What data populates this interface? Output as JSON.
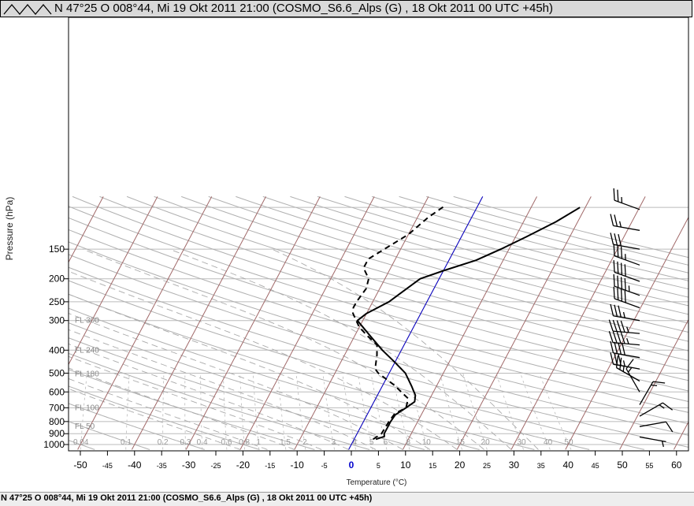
{
  "header": {
    "title": "N 47°25 O 008°44, Mi 19 Okt 2011 21:00 (COSMO_S6.6_Alps (G) , 18 Okt 2011 00 UTC +45h)",
    "logo_icon": "zigzag-logo-icon"
  },
  "status_bar": {
    "text": "N 47°25 O 008°44, Mi 19 Okt 2011 21:00 (COSMO_S6.6_Alps (G) , 18 Okt 2011 00 UTC +45h)"
  },
  "chart_data": {
    "type": "line",
    "xlabel": "Temperature (°C)",
    "ylabel": "Pressure (hPa)",
    "xlim": [
      -50,
      60
    ],
    "ylim": [
      1000,
      100
    ],
    "x_ticks": [
      -50,
      -45,
      -40,
      -35,
      -30,
      -25,
      -20,
      -15,
      -10,
      -5,
      0,
      5,
      10,
      15,
      20,
      25,
      30,
      35,
      40,
      45,
      50,
      55,
      60
    ],
    "y_ticks": [
      150,
      200,
      250,
      300,
      400,
      500,
      600,
      700,
      800,
      900,
      1000
    ],
    "flight_levels": [
      {
        "label": "FL 300",
        "p": 300
      },
      {
        "label": "FL 240",
        "p": 400
      },
      {
        "label": "FL 180",
        "p": 505
      },
      {
        "label": "FL 100",
        "p": 700
      },
      {
        "label": "FL 50",
        "p": 840
      }
    ],
    "mixing_ratio_labels": [
      "0.04",
      "0.1",
      "0.2",
      "0.3",
      "0.4",
      "0.6",
      "0.8",
      "1",
      "1.5",
      "2",
      "3",
      "4",
      "5",
      "6",
      "8",
      "10",
      "15",
      "20",
      "30",
      "40",
      "50"
    ],
    "series": [
      {
        "name": "",
        "style": "solid",
        "points": [
          [
            4,
            950
          ],
          [
            5.3,
            925
          ],
          [
            5,
            900
          ],
          [
            5,
            850
          ],
          [
            5,
            800
          ],
          [
            5.2,
            750
          ],
          [
            6.5,
            700
          ],
          [
            7.5,
            660
          ],
          [
            7,
            620
          ],
          [
            5.5,
            570
          ],
          [
            3,
            500
          ],
          [
            0,
            450
          ],
          [
            -3.5,
            400
          ],
          [
            -7,
            350
          ],
          [
            -11,
            300
          ],
          [
            -10,
            280
          ],
          [
            -7,
            250
          ],
          [
            -5,
            220
          ],
          [
            -3.5,
            200
          ],
          [
            0,
            185
          ],
          [
            5,
            167
          ],
          [
            8.5,
            150
          ],
          [
            12,
            133
          ],
          [
            16,
            115
          ],
          [
            19,
            100
          ]
        ]
      },
      {
        "name": "",
        "style": "dashed",
        "points": [
          [
            3.5,
            950
          ],
          [
            4.5,
            900
          ],
          [
            4.7,
            800
          ],
          [
            5,
            740
          ],
          [
            6.5,
            700
          ],
          [
            6,
            640
          ],
          [
            2,
            560
          ],
          [
            -2,
            500
          ],
          [
            -3,
            480
          ],
          [
            -4,
            420
          ],
          [
            -5,
            380
          ],
          [
            -7.5,
            350
          ],
          [
            -10,
            320
          ],
          [
            -12.5,
            280
          ],
          [
            -13,
            265
          ],
          [
            -13,
            250
          ],
          [
            -12.5,
            220
          ],
          [
            -13,
            200
          ],
          [
            -15,
            180
          ],
          [
            -15,
            165
          ],
          [
            -13,
            150
          ],
          [
            -10,
            130
          ],
          [
            -8,
            110
          ],
          [
            -6,
            98
          ]
        ]
      }
    ],
    "wind_barbs": [
      {
        "p": 102,
        "speed_kt": 25,
        "dir_deg": 290
      },
      {
        "p": 125,
        "speed_kt": 25,
        "dir_deg": 280
      },
      {
        "p": 150,
        "speed_kt": 30,
        "dir_deg": 280
      },
      {
        "p": 175,
        "speed_kt": 35,
        "dir_deg": 290
      },
      {
        "p": 205,
        "speed_kt": 40,
        "dir_deg": 290
      },
      {
        "p": 235,
        "speed_kt": 45,
        "dir_deg": 290
      },
      {
        "p": 265,
        "speed_kt": 40,
        "dir_deg": 290
      },
      {
        "p": 300,
        "speed_kt": 35,
        "dir_deg": 280
      },
      {
        "p": 340,
        "speed_kt": 45,
        "dir_deg": 275
      },
      {
        "p": 380,
        "speed_kt": 45,
        "dir_deg": 275
      },
      {
        "p": 430,
        "speed_kt": 40,
        "dir_deg": 280
      },
      {
        "p": 480,
        "speed_kt": 35,
        "dir_deg": 280
      },
      {
        "p": 540,
        "speed_kt": 25,
        "dir_deg": 300
      },
      {
        "p": 600,
        "speed_kt": 15,
        "dir_deg": 330
      },
      {
        "p": 680,
        "speed_kt": 15,
        "dir_deg": 30
      },
      {
        "p": 760,
        "speed_kt": 15,
        "dir_deg": 60
      },
      {
        "p": 840,
        "speed_kt": 10,
        "dir_deg": 80
      },
      {
        "p": 930,
        "speed_kt": 5,
        "dir_deg": 100
      }
    ],
    "grid": true,
    "colors": {
      "isobar": "#bbbbbb",
      "isotherm": "#a06868",
      "dry_adiabat": "#b0b0b0",
      "moist_adiabat": "#aaaaaa",
      "mixing_ratio": "#bbbbbb",
      "reference_line": "#0000cc",
      "zero_tick": "#0000cc",
      "profile": "#000000"
    }
  }
}
